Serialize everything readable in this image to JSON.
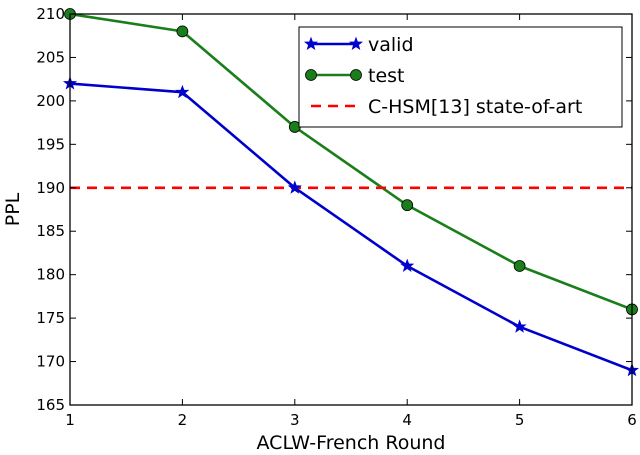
{
  "chart_data": {
    "type": "line",
    "title": "",
    "xlabel": "ACLW-French Round",
    "ylabel": "PPL",
    "x": [
      1,
      2,
      3,
      4,
      5,
      6
    ],
    "xlim": [
      1,
      6
    ],
    "ylim": [
      165,
      210
    ],
    "xticks": [
      "1",
      "2",
      "3",
      "4",
      "5",
      "6"
    ],
    "yticks": [
      "165",
      "170",
      "175",
      "180",
      "185",
      "190",
      "195",
      "200",
      "205",
      "210"
    ],
    "grid": false,
    "legend_position": "top-right",
    "series": [
      {
        "name": "valid",
        "values": [
          202,
          201,
          190,
          181,
          174,
          169
        ],
        "color": "#0000cc",
        "marker": "star",
        "style": "solid"
      },
      {
        "name": "test",
        "values": [
          210,
          208,
          197,
          188,
          181,
          176
        ],
        "color": "#1a7f1a",
        "marker": "circle",
        "style": "solid"
      }
    ],
    "reference_lines": [
      {
        "name": "C-HSM[13] state-of-art",
        "y": 190,
        "color": "#ff0000",
        "style": "dashed"
      }
    ]
  }
}
